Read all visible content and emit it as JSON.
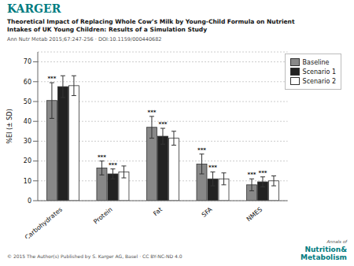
{
  "chart_data": {
    "type": "bar",
    "title": "Theoretical Impact of Replacing Whole Cow’s Milk by Young-Child Formula on Nutrient\nIntakes of UK Young Children: Results of a Simulation Study",
    "subtitle": "Ann Nutr Metab 2015;67:247-256 · DOI:10.1159/000440682",
    "categories": [
      "Carbohydrates",
      "Protein",
      "Fat",
      "SFA",
      "NMES"
    ],
    "ylabel": "%EI (± SD)",
    "ylim": [
      0,
      75
    ],
    "yticks": [
      0,
      10,
      20,
      30,
      40,
      50,
      60,
      70
    ],
    "grid": true,
    "legend": "upper right",
    "series": [
      {
        "name": "Baseline",
        "color": "#888888",
        "values": [
          50.5,
          16.5,
          37.0,
          18.5,
          8.0
        ],
        "errors": [
          9.0,
          3.5,
          5.5,
          5.0,
          3.0
        ],
        "annotations": [
          "***",
          "***",
          "***",
          "***",
          "***"
        ]
      },
      {
        "name": "Scenario 1",
        "color": "#222222",
        "values": [
          57.5,
          13.5,
          32.5,
          11.0,
          9.5
        ],
        "errors": [
          5.5,
          2.5,
          4.0,
          3.5,
          2.5
        ],
        "annotations": [
          null,
          "***",
          "***",
          "***",
          "***"
        ]
      },
      {
        "name": "Scenario 2",
        "color": "#ffffff",
        "values": [
          58.0,
          14.5,
          31.5,
          11.0,
          10.0
        ],
        "errors": [
          5.0,
          3.0,
          3.5,
          3.0,
          2.5
        ],
        "annotations": [
          null,
          null,
          null,
          null,
          null
        ]
      }
    ],
    "annotations": [
      {
        "text": "KARGER",
        "color": "#007b7f"
      },
      {
        "text": "© 2015 The Author(s) Published by S. Karger AG, Basel · CC BY-NC-ND 4.0"
      },
      {
        "text": "Annals of"
      },
      {
        "text": "Nutrition&\nMetabolism",
        "color": "#007b7f"
      }
    ]
  }
}
